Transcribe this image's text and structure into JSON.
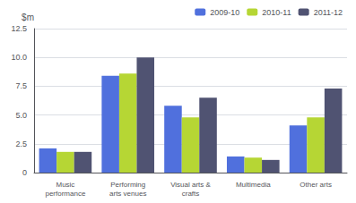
{
  "chart_data": {
    "type": "bar",
    "categories": [
      "Music\nperformance",
      "Performing\narts venues",
      "Visual arts &\ncrafts",
      "Multimedia",
      "Other arts"
    ],
    "series": [
      {
        "name": "2009-10",
        "values": [
          2.1,
          8.4,
          5.8,
          1.4,
          4.1
        ]
      },
      {
        "name": "2010-11",
        "values": [
          1.8,
          8.6,
          4.8,
          1.3,
          4.8
        ]
      },
      {
        "name": "2011-12",
        "values": [
          1.8,
          10.0,
          6.5,
          1.1,
          7.3
        ]
      }
    ],
    "ylabel": "$m",
    "ylim": [
      0,
      12.5
    ],
    "yticks": [
      0,
      2.5,
      {
        "value": 5.0,
        "label": "5.0"
      },
      7.5,
      {
        "value": 10.0,
        "label": "10.0"
      },
      12.5
    ],
    "grid": true,
    "legend": "upper right"
  }
}
